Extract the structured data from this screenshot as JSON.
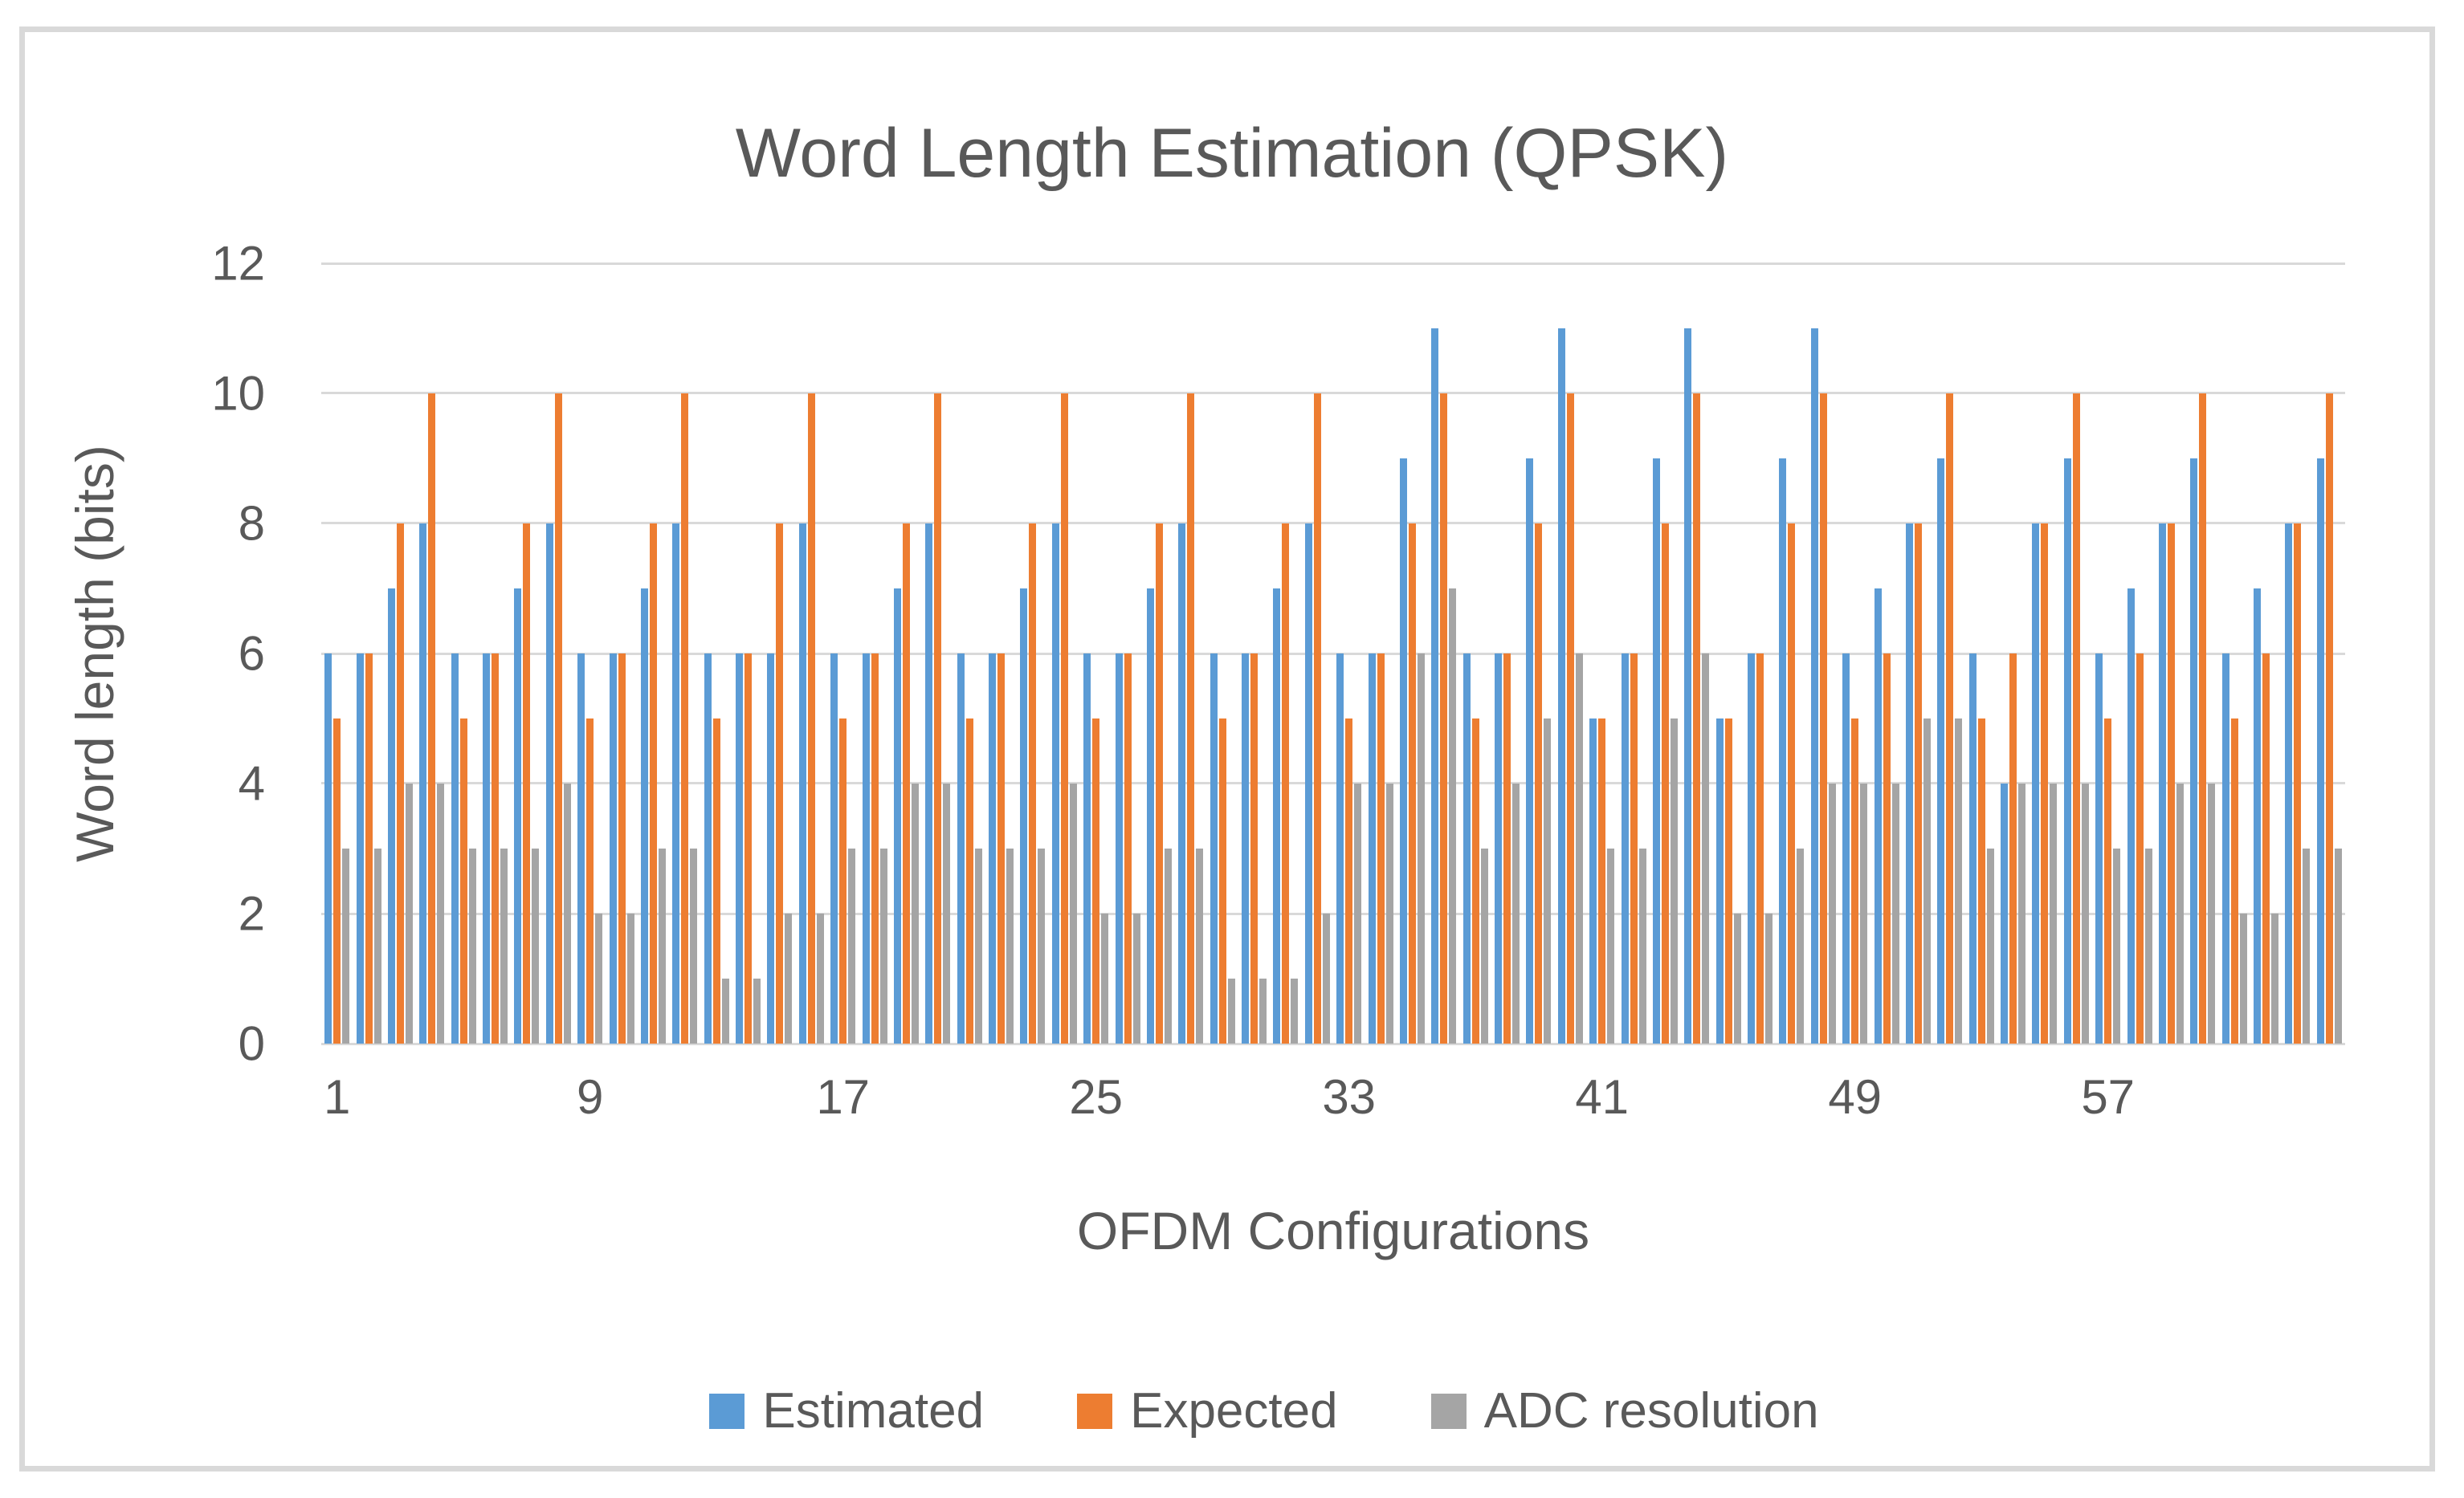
{
  "frame": {
    "border_color": "#d9d9d9",
    "background": "#ffffff"
  },
  "text_color": "#595959",
  "gridline_color": "#d9d9d9",
  "chart_data": {
    "type": "bar",
    "title": "Word Length Estimation (QPSK)",
    "xlabel": "OFDM Configurations",
    "ylabel": "Word length (bits)",
    "ylim": [
      0,
      12
    ],
    "y_ticks": [
      0,
      2,
      4,
      6,
      8,
      10,
      12
    ],
    "x_tick_labels": [
      1,
      9,
      17,
      25,
      33,
      41,
      49,
      57
    ],
    "n_categories": 64,
    "grid": true,
    "legend_position": "bottom",
    "series": [
      {
        "name": "Estimated",
        "color": "#5b9bd5",
        "values": [
          6,
          6,
          7,
          8,
          6,
          6,
          7,
          8,
          6,
          6,
          7,
          8,
          6,
          6,
          6,
          8,
          6,
          6,
          7,
          8,
          6,
          6,
          7,
          8,
          6,
          6,
          7,
          8,
          6,
          6,
          7,
          8,
          6,
          6,
          9,
          11,
          6,
          6,
          9,
          11,
          5,
          6,
          9,
          11,
          5,
          6,
          9,
          11,
          6,
          7,
          8,
          9,
          6,
          4,
          8,
          9,
          6,
          7,
          8,
          9,
          6,
          7,
          8,
          9
        ]
      },
      {
        "name": "Expected",
        "color": "#ed7d31",
        "values": [
          5,
          6,
          8,
          10,
          5,
          6,
          8,
          10,
          5,
          6,
          8,
          10,
          5,
          6,
          8,
          10,
          5,
          6,
          8,
          10,
          5,
          6,
          8,
          10,
          5,
          6,
          8,
          10,
          5,
          6,
          8,
          10,
          5,
          6,
          8,
          10,
          5,
          6,
          8,
          10,
          5,
          6,
          8,
          10,
          5,
          6,
          8,
          10,
          5,
          6,
          8,
          10,
          5,
          6,
          8,
          10,
          5,
          6,
          8,
          10,
          5,
          6,
          8,
          10
        ]
      },
      {
        "name": "ADC resolution",
        "color": "#a5a5a5",
        "values": [
          3,
          3,
          4,
          4,
          3,
          3,
          3,
          4,
          2,
          2,
          3,
          3,
          1,
          1,
          2,
          2,
          3,
          3,
          4,
          4,
          3,
          3,
          3,
          4,
          2,
          2,
          3,
          3,
          1,
          1,
          1,
          2,
          4,
          4,
          6,
          7,
          3,
          4,
          5,
          6,
          3,
          3,
          5,
          6,
          2,
          2,
          3,
          4,
          4,
          4,
          5,
          5,
          3,
          4,
          4,
          4,
          3,
          3,
          4,
          4,
          2,
          2,
          3,
          3
        ]
      }
    ]
  }
}
